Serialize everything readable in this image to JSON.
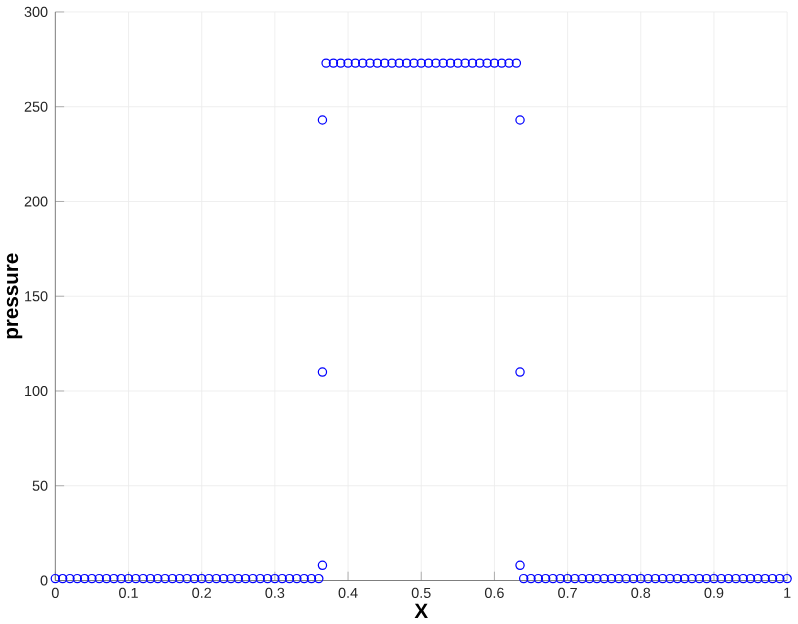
{
  "chart_data": {
    "type": "scatter",
    "xlabel": "X",
    "ylabel": "pressure",
    "x": [
      0,
      0.01,
      0.02,
      0.03,
      0.04,
      0.05,
      0.06,
      0.07,
      0.08,
      0.09,
      0.1,
      0.11,
      0.12,
      0.13,
      0.14,
      0.15,
      0.16,
      0.17,
      0.18,
      0.19,
      0.2,
      0.21,
      0.22,
      0.23,
      0.24,
      0.25,
      0.26,
      0.27,
      0.28,
      0.29,
      0.3,
      0.31,
      0.32,
      0.33,
      0.34,
      0.35,
      0.36,
      0.365,
      0.365,
      0.365,
      0.37,
      0.38,
      0.39,
      0.4,
      0.41,
      0.42,
      0.43,
      0.44,
      0.45,
      0.46,
      0.47,
      0.48,
      0.49,
      0.5,
      0.51,
      0.52,
      0.53,
      0.54,
      0.55,
      0.56,
      0.57,
      0.58,
      0.59,
      0.6,
      0.61,
      0.62,
      0.63,
      0.635,
      0.635,
      0.635,
      0.64,
      0.65,
      0.66,
      0.67,
      0.68,
      0.69,
      0.7,
      0.71,
      0.72,
      0.73,
      0.74,
      0.75,
      0.76,
      0.77,
      0.78,
      0.79,
      0.8,
      0.81,
      0.82,
      0.83,
      0.84,
      0.85,
      0.86,
      0.87,
      0.88,
      0.89,
      0.9,
      0.91,
      0.92,
      0.93,
      0.94,
      0.95,
      0.96,
      0.97,
      0.98,
      0.99,
      1
    ],
    "values": [
      1,
      1,
      1,
      1,
      1,
      1,
      1,
      1,
      1,
      1,
      1,
      1,
      1,
      1,
      1,
      1,
      1,
      1,
      1,
      1,
      1,
      1,
      1,
      1,
      1,
      1,
      1,
      1,
      1,
      1,
      1,
      1,
      1,
      1,
      1,
      1,
      1,
      8,
      110,
      243,
      273,
      273,
      273,
      273,
      273,
      273,
      273,
      273,
      273,
      273,
      273,
      273,
      273,
      273,
      273,
      273,
      273,
      273,
      273,
      273,
      273,
      273,
      273,
      273,
      273,
      273,
      273,
      8,
      110,
      243,
      1,
      1,
      1,
      1,
      1,
      1,
      1,
      1,
      1,
      1,
      1,
      1,
      1,
      1,
      1,
      1,
      1,
      1,
      1,
      1,
      1,
      1,
      1,
      1,
      1,
      1,
      1,
      1,
      1,
      1,
      1,
      1,
      1,
      1,
      1,
      1,
      1
    ],
    "color": "#0000ff",
    "marker": "circle",
    "xlim": [
      0,
      1
    ],
    "xticks": [
      0,
      0.1,
      0.2,
      0.3,
      0.4,
      0.5,
      0.6,
      0.7,
      0.8,
      0.9,
      1
    ],
    "ylim": [
      0,
      300
    ],
    "yticks": [
      0,
      50,
      100,
      150,
      200,
      250,
      300
    ],
    "grid": true
  }
}
